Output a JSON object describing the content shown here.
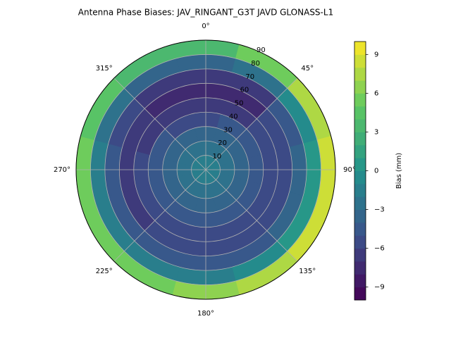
{
  "chart_data": {
    "type": "polar-contour",
    "title": "Antenna Phase Biases: JAV_RINGANT_G3T JAVD GLONASS-L1",
    "r_edges": [
      0,
      10,
      20,
      30,
      40,
      50,
      60,
      70,
      80,
      90
    ],
    "azimuth_centers": [
      0,
      30,
      60,
      90,
      120,
      150,
      180,
      210,
      240,
      270,
      300,
      330
    ],
    "values": [
      [
        -2,
        -2,
        -2,
        -2,
        -2,
        -2,
        -2,
        -2,
        -2,
        -2,
        -2,
        -2
      ],
      [
        -3,
        -3,
        -3,
        -3,
        -3,
        -3,
        -3,
        -3,
        -3,
        -3,
        -3,
        -3
      ],
      [
        -4,
        -4,
        -4,
        -4,
        -4,
        -4,
        -4,
        -4,
        -4,
        -4,
        -4,
        -4
      ],
      [
        -6,
        -5,
        -5,
        -5,
        -5,
        -5,
        -5,
        -5,
        -5,
        -5,
        -5,
        -6
      ],
      [
        -7,
        -7,
        -6,
        -6,
        -6,
        -6,
        -6,
        -6,
        -6,
        -6,
        -7,
        -7
      ],
      [
        -8,
        -8,
        -6,
        -6,
        -6,
        -6,
        -6,
        -6,
        -7,
        -7,
        -7,
        -8
      ],
      [
        -7,
        -7,
        -5,
        -4,
        -4,
        -5,
        -5,
        -5,
        -5,
        -5,
        -6,
        -7
      ],
      [
        -4,
        -3,
        -1,
        0,
        0,
        -1,
        -2,
        -2,
        -2,
        -2,
        -3,
        -4
      ],
      [
        3,
        5,
        7,
        8,
        8,
        7,
        6,
        5,
        5,
        5,
        4,
        3
      ]
    ],
    "rlim": [
      0,
      90
    ],
    "rticks": [
      10,
      20,
      30,
      40,
      50,
      60,
      70,
      80,
      90
    ],
    "thetaticks": [
      {
        "value": 0,
        "label": "0°"
      },
      {
        "value": 45,
        "label": "45°"
      },
      {
        "value": 90,
        "label": "90°"
      },
      {
        "value": 135,
        "label": "135°"
      },
      {
        "value": 180,
        "label": "180°"
      },
      {
        "value": 225,
        "label": "225°"
      },
      {
        "value": 270,
        "label": "270°"
      },
      {
        "value": 315,
        "label": "315°"
      }
    ],
    "colormap": "viridis",
    "levels": 20,
    "clim": [
      -10,
      10
    ],
    "cticks": [
      {
        "value": -9,
        "label": "−9"
      },
      {
        "value": -6,
        "label": "−6"
      },
      {
        "value": -3,
        "label": "−3"
      },
      0,
      3,
      6,
      9
    ],
    "colorbar_label": "Bias (mm)",
    "grid": true
  }
}
